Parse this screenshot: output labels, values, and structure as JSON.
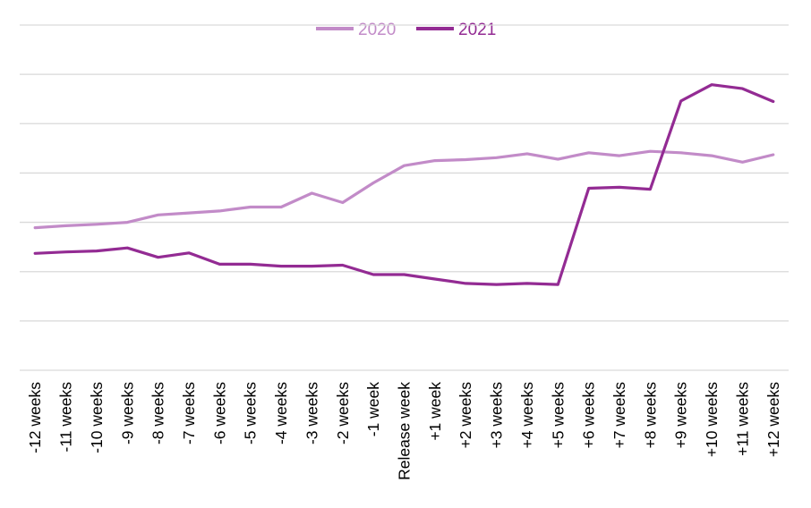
{
  "chart_data": {
    "type": "line",
    "title": "",
    "xlabel": "",
    "ylabel": "",
    "ylim": [
      0,
      7
    ],
    "grid": true,
    "legend_position": "top",
    "categories": [
      "-12 weeks",
      "-11 weeks",
      "-10 weeks",
      "-9 weeks",
      "-8 weeks",
      "-7 weeks",
      "-6 weeks",
      "-5 weeks",
      "-4 weeks",
      "-3 weeks",
      "-2 weeks",
      "-1 week",
      "Release week",
      "+1 week",
      "+2 weeks",
      "+3 weeks",
      "+4 weeks",
      "+5 weeks",
      "+6 weeks",
      "+7 weeks",
      "+8 weeks",
      "+9 weeks",
      "+10 weeks",
      "+11 weeks",
      "+12 weeks"
    ],
    "series": [
      {
        "name": "2020",
        "color": "#c28bc8",
        "values": [
          2.89,
          2.93,
          2.96,
          3.0,
          3.15,
          3.19,
          3.23,
          3.31,
          3.31,
          3.59,
          3.4,
          3.8,
          4.15,
          4.25,
          4.27,
          4.31,
          4.39,
          4.28,
          4.41,
          4.35,
          4.44,
          4.41,
          4.35,
          4.22,
          4.37
        ]
      },
      {
        "name": "2021",
        "color": "#932b93",
        "values": [
          2.37,
          2.4,
          2.42,
          2.48,
          2.29,
          2.38,
          2.15,
          2.15,
          2.11,
          2.11,
          2.13,
          1.94,
          1.94,
          1.85,
          1.76,
          1.74,
          1.76,
          1.74,
          3.69,
          3.71,
          3.67,
          5.46,
          5.79,
          5.71,
          5.45
        ]
      }
    ]
  }
}
